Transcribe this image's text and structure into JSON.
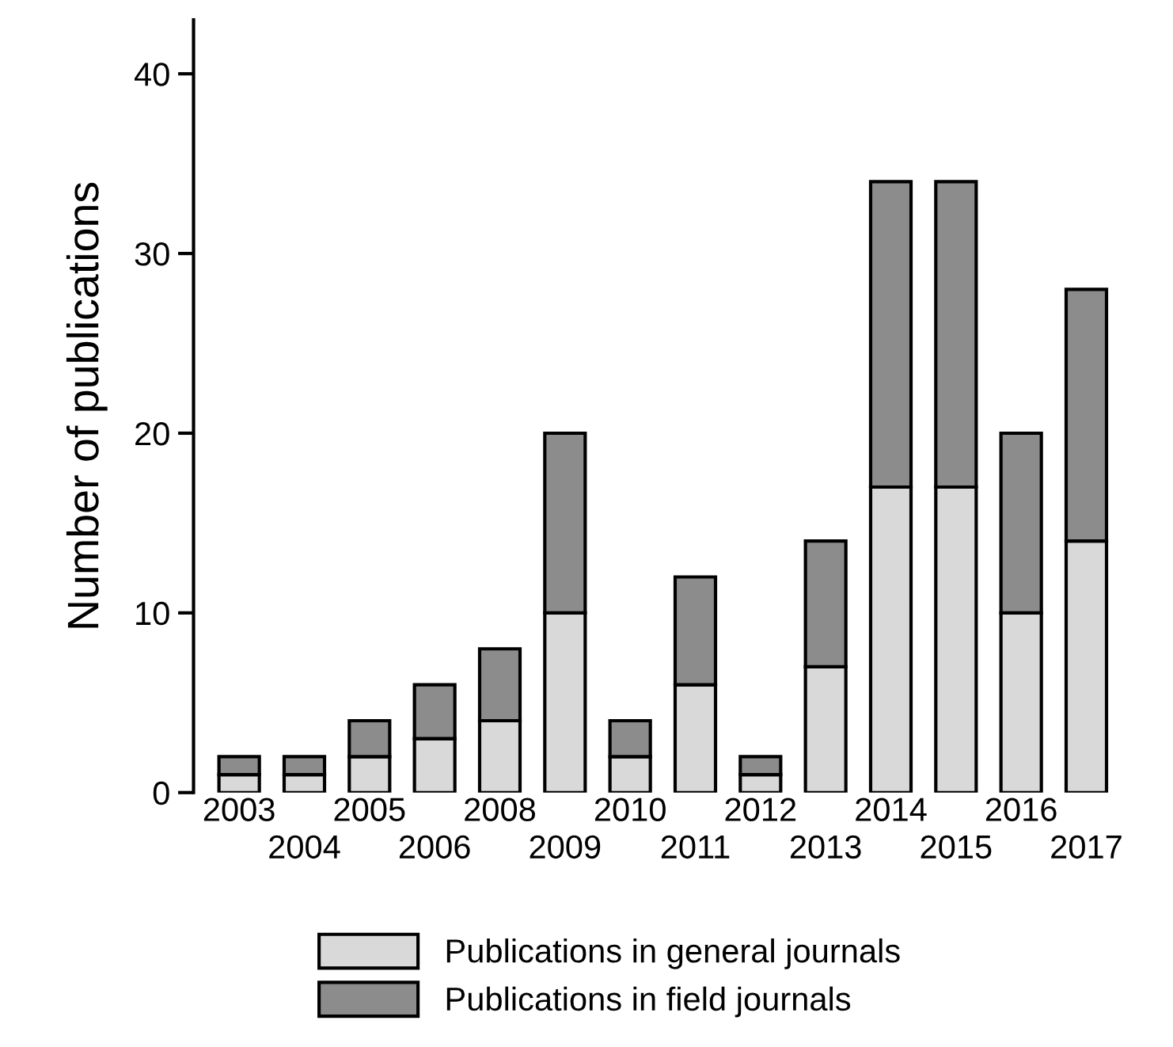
{
  "chart_data": {
    "type": "bar",
    "stacked": true,
    "ylabel": "Number of publications",
    "categories": [
      "2003",
      "2004",
      "2005",
      "2006",
      "2008",
      "2009",
      "2010",
      "2011",
      "2012",
      "2013",
      "2014",
      "2015",
      "2016",
      "2017"
    ],
    "series": [
      {
        "name": "Publications in general journals",
        "color": "#d9d9d9",
        "values": [
          1,
          1,
          2,
          3,
          4,
          10,
          2,
          6,
          1,
          7,
          17,
          17,
          10,
          14
        ]
      },
      {
        "name": "Publications in field journals",
        "color": "#8c8c8c",
        "values": [
          1,
          1,
          2,
          3,
          4,
          10,
          2,
          6,
          1,
          7,
          17,
          17,
          10,
          14
        ]
      }
    ],
    "ylim": [
      0,
      43
    ],
    "yticks": [
      0,
      10,
      20,
      30,
      40
    ],
    "grid": false,
    "legend": "bottom"
  }
}
